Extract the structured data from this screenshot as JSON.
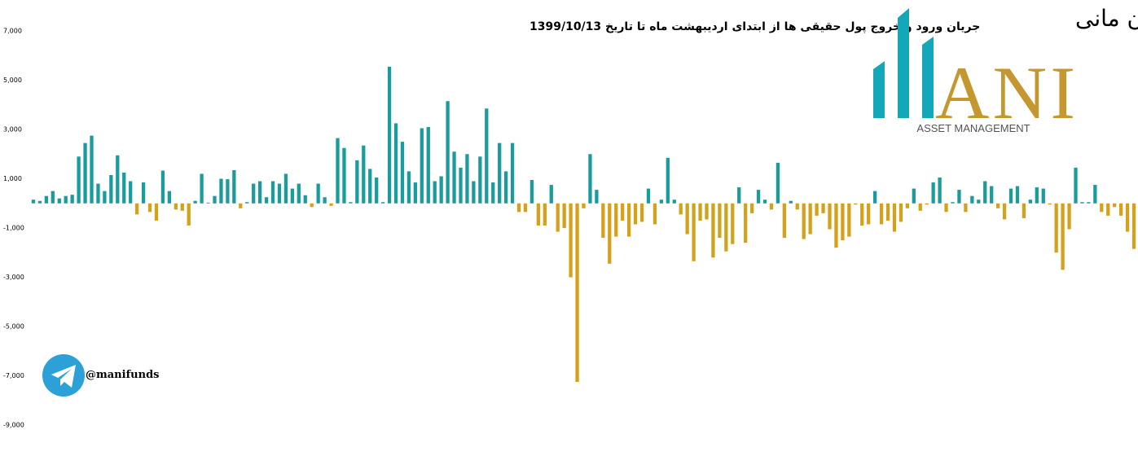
{
  "chart_data": {
    "type": "bar",
    "title": "جریان ورود و خروج پول حقیقی ها از ابتدای اردیبهشت ماه تا تاریخ 1399/10/13",
    "brand_name": "سبد گردان مانی",
    "brand_logo_text": "ANI",
    "brand_subtitle": "ASSET MANAGEMENT",
    "handle": "@manifunds",
    "positive_color": "#1b9c9c",
    "negative_color": "#d4a11c",
    "ylim": [
      -9000,
      7000
    ],
    "yticks": [
      {
        "value": 7000,
        "label": "7,000"
      },
      {
        "value": 5000,
        "label": "5,000"
      },
      {
        "value": 3000,
        "label": "3,000"
      },
      {
        "value": 1000,
        "label": "1,000"
      },
      {
        "value": -1000,
        "label": "-1,000"
      },
      {
        "value": -3000,
        "label": "-3,000"
      },
      {
        "value": -5000,
        "label": "-5,000"
      },
      {
        "value": -7000,
        "label": "-7,000"
      },
      {
        "value": -9000,
        "label": "-9,000"
      }
    ],
    "grid": false,
    "values": [
      150,
      100,
      300,
      500,
      200,
      300,
      350,
      1900,
      2450,
      2750,
      800,
      500,
      1150,
      1950,
      1250,
      900,
      -450,
      850,
      -350,
      -700,
      1330,
      500,
      -250,
      -300,
      -900,
      100,
      1200,
      30,
      300,
      1000,
      980,
      1350,
      -200,
      50,
      800,
      900,
      250,
      900,
      800,
      1200,
      600,
      800,
      330,
      -150,
      800,
      250,
      -100,
      2650,
      2250,
      50,
      1750,
      2350,
      1400,
      1050,
      50,
      5550,
      3250,
      2500,
      1300,
      850,
      3050,
      3100,
      900,
      1100,
      4150,
      2100,
      1450,
      2000,
      900,
      1900,
      3850,
      850,
      2450,
      1300,
      2450,
      -350,
      -350,
      950,
      -900,
      -900,
      750,
      -1150,
      -1000,
      -3000,
      -7250,
      -200,
      2000,
      550,
      -1400,
      -2450,
      -1350,
      -700,
      -1350,
      -850,
      -750,
      600,
      -850,
      150,
      1850,
      150,
      -450,
      -1250,
      -2350,
      -700,
      -650,
      -2200,
      -1400,
      -1950,
      -1650,
      650,
      -1600,
      -400,
      550,
      150,
      -250,
      1650,
      -1400,
      100,
      -250,
      -1450,
      -1250,
      -500,
      -400,
      -1050,
      -1800,
      -1500,
      -1350,
      -50,
      -900,
      -850,
      500,
      -850,
      -700,
      -1150,
      -750,
      -200,
      600,
      -300,
      -50,
      850,
      1050,
      -350,
      50,
      550,
      -350,
      300,
      150,
      900,
      700,
      -200,
      -650,
      600,
      700,
      -600,
      150,
      650,
      600,
      -50,
      -2000,
      -2700,
      -1050,
      1450,
      50,
      50,
      750,
      -350,
      -500,
      -150,
      -500,
      -1150,
      -1850
    ]
  }
}
